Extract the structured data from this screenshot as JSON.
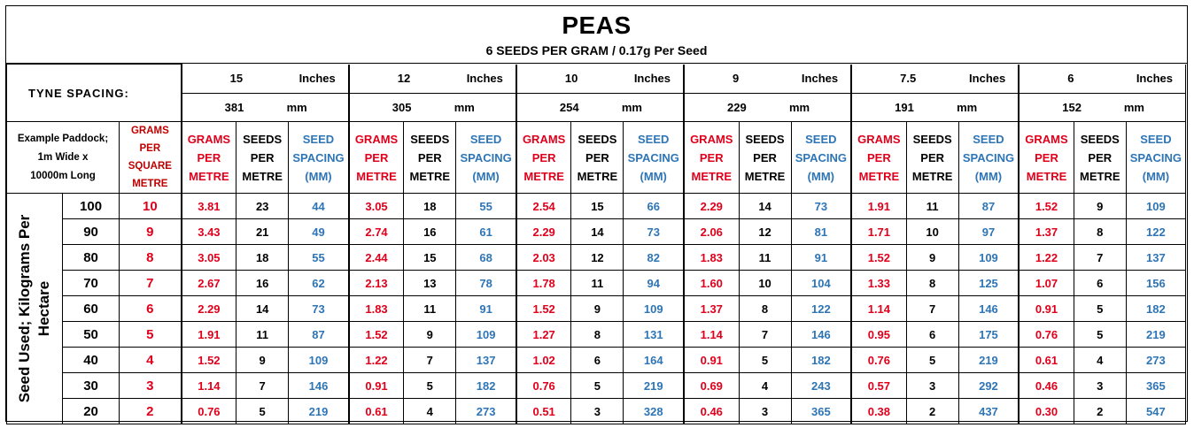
{
  "title": "PEAS",
  "subtitle": "6 SEEDS PER GRAM / 0.17g Per Seed",
  "tyne_label": "TYNE SPACING:",
  "example_paddock": [
    "Example Paddock;",
    "1m Wide x",
    "10000m Long"
  ],
  "gpsm_header": [
    "GRAMS",
    "PER",
    "SQUARE",
    "METRE"
  ],
  "side_label": [
    "Seed Used; Kilograms Per",
    "Hectare"
  ],
  "col_headers": {
    "grams": [
      "GRAMS",
      "PER",
      "METRE"
    ],
    "seeds": [
      "SEEDS",
      "PER",
      "METRE"
    ],
    "spacing": [
      "SEED",
      "SPACING",
      "(MM)"
    ]
  },
  "spacings": [
    {
      "inches": "15",
      "inches_unit": "Inches",
      "mm": "381",
      "mm_unit": "mm"
    },
    {
      "inches": "12",
      "inches_unit": "Inches",
      "mm": "305",
      "mm_unit": "mm"
    },
    {
      "inches": "10",
      "inches_unit": "Inches",
      "mm": "254",
      "mm_unit": "mm"
    },
    {
      "inches": "9",
      "inches_unit": "Inches",
      "mm": "229",
      "mm_unit": "mm"
    },
    {
      "inches": "7.5",
      "inches_unit": "Inches",
      "mm": "191",
      "mm_unit": "mm"
    },
    {
      "inches": "6",
      "inches_unit": "Inches",
      "mm": "152",
      "mm_unit": "mm"
    }
  ],
  "rows": [
    {
      "kg": "100",
      "gsm": "10",
      "cells": [
        [
          "3.81",
          "23",
          "44"
        ],
        [
          "3.05",
          "18",
          "55"
        ],
        [
          "2.54",
          "15",
          "66"
        ],
        [
          "2.29",
          "14",
          "73"
        ],
        [
          "1.91",
          "11",
          "87"
        ],
        [
          "1.52",
          "9",
          "109"
        ]
      ]
    },
    {
      "kg": "90",
      "gsm": "9",
      "cells": [
        [
          "3.43",
          "21",
          "49"
        ],
        [
          "2.74",
          "16",
          "61"
        ],
        [
          "2.29",
          "14",
          "73"
        ],
        [
          "2.06",
          "12",
          "81"
        ],
        [
          "1.71",
          "10",
          "97"
        ],
        [
          "1.37",
          "8",
          "122"
        ]
      ]
    },
    {
      "kg": "80",
      "gsm": "8",
      "cells": [
        [
          "3.05",
          "18",
          "55"
        ],
        [
          "2.44",
          "15",
          "68"
        ],
        [
          "2.03",
          "12",
          "82"
        ],
        [
          "1.83",
          "11",
          "91"
        ],
        [
          "1.52",
          "9",
          "109"
        ],
        [
          "1.22",
          "7",
          "137"
        ]
      ]
    },
    {
      "kg": "70",
      "gsm": "7",
      "cells": [
        [
          "2.67",
          "16",
          "62"
        ],
        [
          "2.13",
          "13",
          "78"
        ],
        [
          "1.78",
          "11",
          "94"
        ],
        [
          "1.60",
          "10",
          "104"
        ],
        [
          "1.33",
          "8",
          "125"
        ],
        [
          "1.07",
          "6",
          "156"
        ]
      ]
    },
    {
      "kg": "60",
      "gsm": "6",
      "cells": [
        [
          "2.29",
          "14",
          "73"
        ],
        [
          "1.83",
          "11",
          "91"
        ],
        [
          "1.52",
          "9",
          "109"
        ],
        [
          "1.37",
          "8",
          "122"
        ],
        [
          "1.14",
          "7",
          "146"
        ],
        [
          "0.91",
          "5",
          "182"
        ]
      ]
    },
    {
      "kg": "50",
      "gsm": "5",
      "cells": [
        [
          "1.91",
          "11",
          "87"
        ],
        [
          "1.52",
          "9",
          "109"
        ],
        [
          "1.27",
          "8",
          "131"
        ],
        [
          "1.14",
          "7",
          "146"
        ],
        [
          "0.95",
          "6",
          "175"
        ],
        [
          "0.76",
          "5",
          "219"
        ]
      ]
    },
    {
      "kg": "40",
      "gsm": "4",
      "cells": [
        [
          "1.52",
          "9",
          "109"
        ],
        [
          "1.22",
          "7",
          "137"
        ],
        [
          "1.02",
          "6",
          "164"
        ],
        [
          "0.91",
          "5",
          "182"
        ],
        [
          "0.76",
          "5",
          "219"
        ],
        [
          "0.61",
          "4",
          "273"
        ]
      ]
    },
    {
      "kg": "30",
      "gsm": "3",
      "cells": [
        [
          "1.14",
          "7",
          "146"
        ],
        [
          "0.91",
          "5",
          "182"
        ],
        [
          "0.76",
          "5",
          "219"
        ],
        [
          "0.69",
          "4",
          "243"
        ],
        [
          "0.57",
          "3",
          "292"
        ],
        [
          "0.46",
          "3",
          "365"
        ]
      ]
    },
    {
      "kg": "20",
      "gsm": "2",
      "cells": [
        [
          "0.76",
          "5",
          "219"
        ],
        [
          "0.61",
          "4",
          "273"
        ],
        [
          "0.51",
          "3",
          "328"
        ],
        [
          "0.46",
          "3",
          "365"
        ],
        [
          "0.38",
          "2",
          "437"
        ],
        [
          "0.30",
          "2",
          "547"
        ]
      ]
    }
  ],
  "colors": {
    "red": "#e0001b",
    "blue": "#2e75b6",
    "border": "#000000"
  }
}
